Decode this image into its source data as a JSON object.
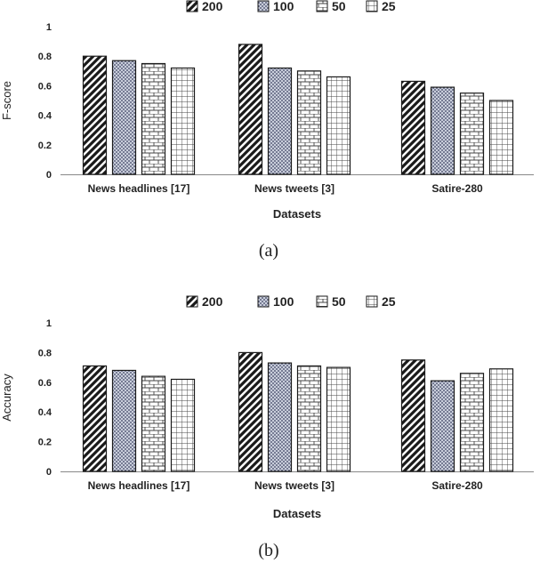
{
  "chart_data": [
    {
      "type": "bar",
      "title": "",
      "caption": "(a)",
      "xlabel": "Datasets",
      "ylabel": "F-score",
      "ylim": [
        0,
        1
      ],
      "yticks": [
        "0",
        "0.2",
        "0.4",
        "0.6",
        "0.8",
        "1"
      ],
      "categories": [
        "News headlines [17]",
        "News tweets [3]",
        "Satire-280"
      ],
      "legend_position": "top",
      "series": [
        {
          "name": "200",
          "pattern": "diagonal-stripes",
          "values": [
            0.8,
            0.88,
            0.63
          ]
        },
        {
          "name": "100",
          "pattern": "dots",
          "values": [
            0.77,
            0.72,
            0.59
          ]
        },
        {
          "name": "50",
          "pattern": "bricks",
          "values": [
            0.75,
            0.7,
            0.55
          ]
        },
        {
          "name": "25",
          "pattern": "grid",
          "values": [
            0.72,
            0.66,
            0.5
          ]
        }
      ]
    },
    {
      "type": "bar",
      "title": "",
      "caption": "(b)",
      "xlabel": "Datasets",
      "ylabel": "Accuracy",
      "ylim": [
        0,
        1
      ],
      "yticks": [
        "0",
        "0.2",
        "0.4",
        "0.6",
        "0.8",
        "1"
      ],
      "categories": [
        "News headlines [17]",
        "News tweets [3]",
        "Satire-280"
      ],
      "legend_position": "top",
      "series": [
        {
          "name": "200",
          "pattern": "diagonal-stripes",
          "values": [
            0.71,
            0.8,
            0.75
          ]
        },
        {
          "name": "100",
          "pattern": "dots",
          "values": [
            0.68,
            0.73,
            0.61
          ]
        },
        {
          "name": "50",
          "pattern": "bricks",
          "values": [
            0.64,
            0.71,
            0.66
          ]
        },
        {
          "name": "25",
          "pattern": "grid",
          "values": [
            0.62,
            0.7,
            0.69
          ]
        }
      ]
    }
  ]
}
